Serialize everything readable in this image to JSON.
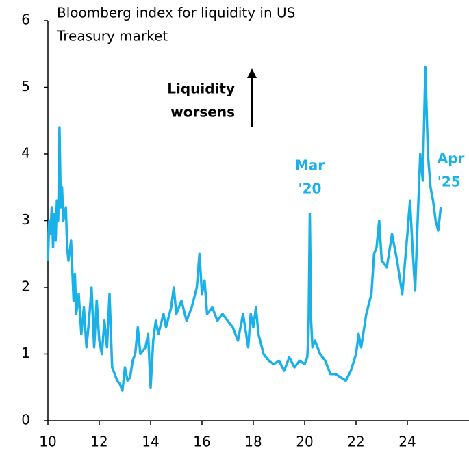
{
  "chart_data": {
    "type": "line",
    "title": [
      "Bloomberg index for liquidity in US",
      "Treasury market"
    ],
    "note": [
      "Liquidity",
      "worsens"
    ],
    "annotations": [
      {
        "lines": [
          "Mar",
          "'20"
        ],
        "x": 20.2,
        "y": 3.1
      },
      {
        "lines": [
          "Apr",
          "'25"
        ],
        "x": 25.3,
        "y": 3.2
      }
    ],
    "xlim": [
      10,
      26.4
    ],
    "xticks": [
      10,
      12,
      14,
      16,
      18,
      20,
      22,
      24
    ],
    "ylim": [
      0,
      6
    ],
    "yticks": [
      0,
      1,
      2,
      3,
      4,
      5,
      6
    ],
    "series": [
      {
        "color": "#1ab0e8",
        "x": [
          10.0,
          10.05,
          10.1,
          10.15,
          10.2,
          10.25,
          10.3,
          10.35,
          10.4,
          10.45,
          10.5,
          10.55,
          10.6,
          10.7,
          10.75,
          10.8,
          10.9,
          11.0,
          11.05,
          11.1,
          11.2,
          11.3,
          11.4,
          11.5,
          11.6,
          11.7,
          11.8,
          11.9,
          12.0,
          12.1,
          12.2,
          12.3,
          12.4,
          12.5,
          12.6,
          12.7,
          12.8,
          12.9,
          13.0,
          13.1,
          13.2,
          13.3,
          13.4,
          13.5,
          13.6,
          13.8,
          13.9,
          14.0,
          14.1,
          14.2,
          14.3,
          14.5,
          14.6,
          14.8,
          14.9,
          15.0,
          15.2,
          15.4,
          15.6,
          15.8,
          15.9,
          16.0,
          16.1,
          16.2,
          16.4,
          16.6,
          16.8,
          17.0,
          17.2,
          17.4,
          17.6,
          17.8,
          17.9,
          18.0,
          18.1,
          18.2,
          18.4,
          18.6,
          18.8,
          19.0,
          19.2,
          19.4,
          19.6,
          19.8,
          20.0,
          20.1,
          20.15,
          20.2,
          20.25,
          20.3,
          20.4,
          20.6,
          20.8,
          21.0,
          21.2,
          21.4,
          21.6,
          21.8,
          22.0,
          22.1,
          22.2,
          22.4,
          22.6,
          22.7,
          22.8,
          22.9,
          23.0,
          23.2,
          23.4,
          23.6,
          23.8,
          24.0,
          24.1,
          24.2,
          24.3,
          24.4,
          24.5,
          24.6,
          24.7,
          24.8,
          24.9,
          25.0,
          25.1,
          25.2,
          25.3
        ],
        "values": [
          2.4,
          3.0,
          2.8,
          3.2,
          2.6,
          3.1,
          2.7,
          3.3,
          3.0,
          4.4,
          3.2,
          3.5,
          3.0,
          3.2,
          2.6,
          2.4,
          2.7,
          1.8,
          2.2,
          1.6,
          1.9,
          1.3,
          1.7,
          1.1,
          1.5,
          2.0,
          1.1,
          1.8,
          1.2,
          1.0,
          1.5,
          1.1,
          1.9,
          0.8,
          0.7,
          0.6,
          0.55,
          0.45,
          0.8,
          0.6,
          0.65,
          0.9,
          1.0,
          1.4,
          1.0,
          1.1,
          1.3,
          0.5,
          1.2,
          1.5,
          1.3,
          1.6,
          1.4,
          1.7,
          2.0,
          1.6,
          1.8,
          1.5,
          1.7,
          2.0,
          2.5,
          1.9,
          2.1,
          1.6,
          1.7,
          1.5,
          1.6,
          1.5,
          1.4,
          1.2,
          1.6,
          1.1,
          1.6,
          1.4,
          1.7,
          1.3,
          1.0,
          0.9,
          0.85,
          0.9,
          0.75,
          0.95,
          0.8,
          0.9,
          0.85,
          0.95,
          1.3,
          3.1,
          1.5,
          1.1,
          1.2,
          1.0,
          0.9,
          0.7,
          0.7,
          0.65,
          0.6,
          0.75,
          1.0,
          1.3,
          1.1,
          1.6,
          1.9,
          2.5,
          2.6,
          3.0,
          2.4,
          2.3,
          2.8,
          2.4,
          1.9,
          2.8,
          3.3,
          2.6,
          1.95,
          3.0,
          4.0,
          3.6,
          5.3,
          4.0,
          3.5,
          3.3,
          3.0,
          2.85,
          3.2
        ]
      }
    ]
  }
}
